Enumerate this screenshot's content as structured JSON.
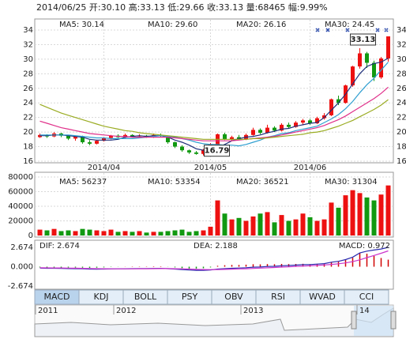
{
  "header": "2014/06/25 开:30.10 高:33.13 低:29.66 收:33.13 量:68465 幅:9.99%",
  "chart_data": [
    {
      "type": "candlestick",
      "categories": [
        null,
        null,
        null,
        null,
        null,
        null,
        null,
        null,
        null,
        "2014/04",
        null,
        null,
        null,
        null,
        null,
        null,
        null,
        null,
        null,
        null,
        null,
        null,
        null,
        null,
        "2014/05",
        null,
        null,
        null,
        null,
        null,
        null,
        null,
        null,
        null,
        null,
        null,
        null,
        null,
        "2014/06",
        null,
        null,
        null,
        null,
        null,
        null,
        null,
        null,
        null,
        null,
        null
      ],
      "open": [
        19.3,
        19.6,
        19.4,
        19.8,
        19.5,
        19.1,
        19.4,
        18.6,
        18.4,
        18.8,
        19.2,
        19.5,
        19.3,
        19.6,
        19.4,
        19.5,
        19.3,
        19.6,
        19.4,
        18.6,
        18.0,
        17.5,
        17.2,
        17.0,
        17.6,
        18.3,
        19.7,
        19.0,
        19.3,
        19.0,
        19.6,
        20.3,
        19.9,
        20.6,
        20.2,
        21.0,
        20.7,
        21.3,
        21.6,
        21.2,
        21.9,
        22.3,
        24.5,
        24.0,
        26.4,
        29.0,
        30.8,
        29.5,
        27.5,
        30.1
      ],
      "high": [
        19.8,
        19.7,
        20.0,
        19.9,
        19.6,
        19.5,
        19.5,
        18.9,
        18.9,
        19.3,
        19.6,
        19.7,
        19.8,
        19.7,
        19.7,
        19.6,
        19.8,
        19.8,
        19.5,
        18.7,
        18.2,
        17.6,
        17.4,
        17.7,
        18.5,
        19.8,
        19.9,
        19.5,
        19.6,
        19.8,
        20.6,
        20.5,
        21.0,
        20.8,
        21.2,
        21.3,
        21.5,
        21.8,
        21.8,
        22.1,
        22.6,
        24.6,
        25.0,
        26.5,
        29.1,
        31.5,
        31.0,
        29.8,
        30.3,
        33.13
      ],
      "low": [
        19.2,
        19.2,
        19.3,
        19.3,
        18.9,
        18.8,
        18.4,
        18.2,
        18.3,
        18.7,
        19.0,
        19.2,
        19.2,
        19.3,
        19.3,
        19.2,
        19.2,
        19.3,
        18.4,
        17.8,
        17.3,
        17.0,
        16.9,
        16.79,
        17.5,
        18.2,
        18.9,
        18.8,
        18.9,
        18.9,
        19.5,
        19.7,
        19.8,
        20.0,
        20.1,
        20.5,
        20.6,
        21.0,
        21.0,
        21.1,
        21.7,
        22.2,
        23.7,
        23.9,
        26.2,
        28.7,
        28.8,
        27.0,
        27.3,
        29.66
      ],
      "close": [
        19.6,
        19.4,
        19.8,
        19.5,
        19.1,
        19.4,
        18.6,
        18.4,
        18.8,
        19.2,
        19.5,
        19.3,
        19.6,
        19.4,
        19.5,
        19.3,
        19.6,
        19.5,
        18.6,
        18.0,
        17.5,
        17.2,
        17.0,
        17.6,
        18.3,
        19.7,
        19.0,
        19.3,
        19.0,
        19.6,
        20.3,
        19.9,
        20.6,
        20.2,
        21.0,
        20.7,
        21.3,
        21.6,
        21.2,
        21.9,
        22.3,
        24.5,
        24.0,
        26.4,
        29.0,
        30.8,
        29.5,
        27.5,
        30.1,
        33.13
      ],
      "up_color": "#ee1111",
      "down_color": "#119911",
      "series": [
        {
          "name": "MA5: 30.14",
          "color": "#1f2f7a",
          "values": [
            19.5,
            19.5,
            19.6,
            19.6,
            19.5,
            19.4,
            19.3,
            19.0,
            18.9,
            18.9,
            18.9,
            19.0,
            19.3,
            19.4,
            19.5,
            19.4,
            19.5,
            19.5,
            19.3,
            18.9,
            18.6,
            18.2,
            17.7,
            17.5,
            17.5,
            17.9,
            18.3,
            18.8,
            19.1,
            19.3,
            19.4,
            19.6,
            19.9,
            20.1,
            20.4,
            20.5,
            20.8,
            21.0,
            21.2,
            21.3,
            22.0,
            23.0,
            24.0,
            25.2,
            26.6,
            28.0,
            29.0,
            29.4,
            29.6,
            30.14
          ]
        },
        {
          "name": "MA10: 29.60",
          "color": "#2f9fd0",
          "values": [
            19.6,
            19.6,
            19.6,
            19.6,
            19.6,
            19.5,
            19.4,
            19.3,
            19.2,
            19.2,
            19.1,
            19.1,
            19.1,
            19.1,
            19.2,
            19.3,
            19.4,
            19.5,
            19.4,
            19.3,
            19.1,
            18.9,
            18.6,
            18.4,
            18.3,
            18.3,
            18.2,
            18.2,
            18.1,
            18.3,
            18.6,
            18.9,
            19.3,
            19.5,
            19.8,
            19.9,
            20.2,
            20.4,
            20.6,
            20.8,
            21.3,
            21.8,
            22.4,
            23.2,
            24.2,
            25.4,
            26.5,
            27.4,
            28.5,
            29.6
          ]
        },
        {
          "name": "MA20: 26.16",
          "color": "#e0308a",
          "values": [
            21.5,
            21.2,
            20.9,
            20.6,
            20.4,
            20.2,
            20.0,
            19.8,
            19.7,
            19.6,
            19.5,
            19.4,
            19.4,
            19.3,
            19.3,
            19.3,
            19.3,
            19.3,
            19.3,
            19.2,
            19.1,
            19.0,
            18.9,
            18.8,
            18.8,
            18.8,
            18.8,
            18.8,
            18.9,
            19.0,
            19.1,
            19.2,
            19.3,
            19.4,
            19.6,
            19.8,
            20.0,
            20.2,
            20.4,
            20.6,
            20.9,
            21.3,
            21.7,
            22.2,
            22.8,
            23.4,
            24.0,
            24.6,
            25.3,
            26.16
          ]
        },
        {
          "name": "MA30: 24.45",
          "color": "#9aac22",
          "values": [
            23.8,
            23.4,
            23.0,
            22.6,
            22.3,
            22.0,
            21.7,
            21.4,
            21.1,
            20.8,
            20.6,
            20.4,
            20.2,
            20.1,
            19.9,
            19.8,
            19.7,
            19.6,
            19.5,
            19.4,
            19.3,
            19.2,
            19.1,
            19.0,
            19.0,
            19.0,
            19.0,
            19.0,
            19.0,
            19.0,
            19.1,
            19.1,
            19.2,
            19.3,
            19.4,
            19.5,
            19.6,
            19.7,
            19.9,
            20.0,
            20.2,
            20.5,
            20.8,
            21.2,
            21.6,
            22.1,
            22.6,
            23.1,
            23.7,
            24.45
          ]
        }
      ],
      "ylim": [
        16,
        34
      ],
      "yticks": [
        16,
        18,
        20,
        22,
        24,
        26,
        28,
        30,
        32,
        34
      ],
      "grid": true
    },
    {
      "type": "bar",
      "values": [
        8000,
        7000,
        9000,
        6000,
        7000,
        6000,
        9000,
        8000,
        7000,
        6000,
        8000,
        5000,
        6000,
        5000,
        6000,
        4000,
        5000,
        5000,
        6000,
        7000,
        8000,
        5000,
        6000,
        7000,
        12000,
        48000,
        30000,
        22000,
        24000,
        20000,
        26000,
        30000,
        32000,
        18000,
        28000,
        20000,
        22000,
        30000,
        25000,
        20000,
        22000,
        45000,
        38000,
        55000,
        62000,
        58000,
        52000,
        48000,
        56000,
        68465
      ],
      "legend": [
        {
          "name": "MA5: 56237",
          "color": "#1f2f7a"
        },
        {
          "name": "MA10: 53354",
          "color": "#2f9fd0"
        },
        {
          "name": "MA20: 36521",
          "color": "#e0308a"
        },
        {
          "name": "MA30: 31304",
          "color": "#9aac22"
        }
      ],
      "ylim": [
        0,
        80000
      ],
      "yticks": [
        0,
        20000,
        40000,
        60000,
        80000
      ],
      "grid": true
    },
    {
      "type": "macd",
      "series": [
        {
          "name": "DIF: 2.674",
          "color": "#2a2ab0",
          "values": [
            -0.2,
            -0.22,
            -0.22,
            -0.24,
            -0.26,
            -0.27,
            -0.3,
            -0.33,
            -0.34,
            -0.33,
            -0.31,
            -0.3,
            -0.28,
            -0.27,
            -0.26,
            -0.26,
            -0.24,
            -0.23,
            -0.27,
            -0.33,
            -0.4,
            -0.46,
            -0.5,
            -0.5,
            -0.45,
            -0.33,
            -0.27,
            -0.22,
            -0.19,
            -0.14,
            -0.07,
            -0.04,
            0.03,
            0.06,
            0.13,
            0.16,
            0.22,
            0.28,
            0.3,
            0.36,
            0.43,
            0.62,
            0.74,
            0.98,
            1.32,
            1.9,
            2.15,
            2.3,
            2.45,
            2.674
          ]
        },
        {
          "name": "DEA: 2.188",
          "color": "#cc33cc",
          "values": [
            -0.15,
            -0.16,
            -0.17,
            -0.18,
            -0.2,
            -0.21,
            -0.23,
            -0.25,
            -0.27,
            -0.28,
            -0.29,
            -0.29,
            -0.29,
            -0.29,
            -0.28,
            -0.28,
            -0.27,
            -0.26,
            -0.26,
            -0.28,
            -0.3,
            -0.33,
            -0.37,
            -0.39,
            -0.4,
            -0.39,
            -0.37,
            -0.34,
            -0.31,
            -0.28,
            -0.24,
            -0.2,
            -0.15,
            -0.11,
            -0.06,
            -0.02,
            0.03,
            0.08,
            0.13,
            0.18,
            0.24,
            0.32,
            0.4,
            0.52,
            0.7,
            0.95,
            1.25,
            1.55,
            1.85,
            2.188
          ]
        }
      ],
      "histogram": {
        "name": "MACD: 0.972",
        "color": "#d00000",
        "values": [
          -0.1,
          -0.12,
          -0.1,
          -0.12,
          -0.12,
          -0.12,
          -0.14,
          -0.16,
          -0.14,
          -0.1,
          -0.04,
          -0.02,
          0.02,
          0.04,
          0.04,
          0.04,
          0.06,
          0.06,
          -0.02,
          -0.1,
          -0.2,
          -0.26,
          -0.26,
          -0.22,
          -0.1,
          0.12,
          0.2,
          0.24,
          0.24,
          0.28,
          0.34,
          0.32,
          0.36,
          0.34,
          0.38,
          0.36,
          0.38,
          0.4,
          0.34,
          0.36,
          0.38,
          0.6,
          0.68,
          0.92,
          1.24,
          1.9,
          1.8,
          1.5,
          1.2,
          0.972
        ]
      },
      "ylim": [
        -2.674,
        2.674
      ],
      "yticks": [
        2.674,
        {
          "value": 0,
          "label": "0.000"
        },
        -2.674
      ]
    }
  ],
  "tabs": [
    "MACD",
    "KDJ",
    "BOLL",
    "PSY",
    "OBV",
    "RSI",
    "WVAD",
    "CCI"
  ],
  "timeline": [
    "2011",
    "2012",
    "2013",
    "14"
  ]
}
